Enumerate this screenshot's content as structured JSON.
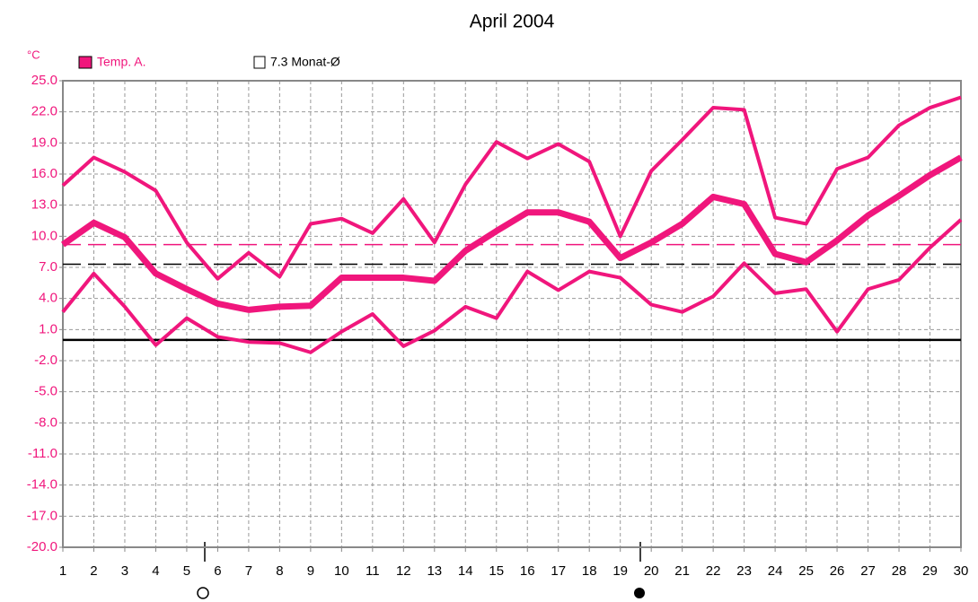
{
  "chart_data": {
    "type": "line",
    "title": "April 2004",
    "y_unit": "°C",
    "x": [
      1,
      2,
      3,
      4,
      5,
      6,
      7,
      8,
      9,
      10,
      11,
      12,
      13,
      14,
      15,
      16,
      17,
      18,
      19,
      20,
      21,
      22,
      23,
      24,
      25,
      26,
      27,
      28,
      29,
      30
    ],
    "xlim": [
      1,
      30
    ],
    "xticks": [
      1,
      2,
      3,
      4,
      5,
      6,
      7,
      8,
      9,
      10,
      11,
      12,
      13,
      14,
      15,
      16,
      17,
      18,
      19,
      20,
      21,
      22,
      23,
      24,
      25,
      26,
      27,
      28,
      29,
      30
    ],
    "ylim": [
      -20,
      25
    ],
    "yticks": [
      {
        "value": 25,
        "label": "25.0"
      },
      {
        "value": 22,
        "label": "22.0"
      },
      {
        "value": 19,
        "label": "19.0"
      },
      {
        "value": 16,
        "label": "16.0"
      },
      {
        "value": 13,
        "label": "13.0"
      },
      {
        "value": 10,
        "label": "10.0"
      },
      {
        "value": 7,
        "label": "7.0"
      },
      {
        "value": 4,
        "label": "4.0"
      },
      {
        "value": 1,
        "label": "1.0"
      },
      {
        "value": -2,
        "label": "-2.0"
      },
      {
        "value": -5,
        "label": "-5.0"
      },
      {
        "value": -8,
        "label": "-8.0"
      },
      {
        "value": -11,
        "label": "-11.0"
      },
      {
        "value": -14,
        "label": "-14.0"
      },
      {
        "value": -17,
        "label": "-17.0"
      },
      {
        "value": -20,
        "label": "-20.0"
      }
    ],
    "grid": true,
    "series": [
      {
        "color": "#f0167c",
        "values": [
          14.9,
          17.6,
          16.2,
          14.4,
          9.4,
          5.9,
          8.4,
          6.1,
          11.2,
          11.7,
          10.3,
          13.6,
          9.4,
          15.0,
          19.1,
          17.5,
          18.9,
          17.2,
          10.0,
          16.3,
          19.3,
          22.4,
          22.2,
          11.8,
          11.2,
          16.5,
          17.6,
          20.7,
          22.4,
          23.4
        ]
      },
      {
        "name": "Temp. A.",
        "color": "#f0167c",
        "values": [
          9.2,
          11.3,
          9.9,
          6.4,
          4.9,
          3.5,
          2.9,
          3.2,
          3.3,
          6.0,
          6.0,
          6.0,
          5.7,
          8.6,
          10.5,
          12.3,
          12.3,
          11.4,
          7.9,
          9.4,
          11.2,
          13.8,
          13.1,
          8.3,
          7.5,
          9.6,
          12.0,
          13.9,
          15.9,
          17.6
        ]
      },
      {
        "color": "#f0167c",
        "values": [
          2.7,
          6.4,
          3.2,
          -0.5,
          2.1,
          0.3,
          -0.2,
          -0.3,
          -1.2,
          0.8,
          2.5,
          -0.6,
          0.9,
          3.2,
          2.1,
          6.6,
          4.8,
          6.6,
          6.0,
          3.4,
          2.7,
          4.2,
          7.4,
          4.5,
          4.9,
          0.8,
          4.9,
          5.8,
          8.9,
          11.6
        ]
      }
    ],
    "reference_lines": [
      {
        "value": 9.2,
        "color": "#f0167c",
        "style": "dashed"
      },
      {
        "value": 7.3,
        "color": "#000000",
        "style": "dashed",
        "label": "7.3 Monat-Ø"
      },
      {
        "value": 0,
        "color": "#000000",
        "style": "solid"
      }
    ]
  }
}
